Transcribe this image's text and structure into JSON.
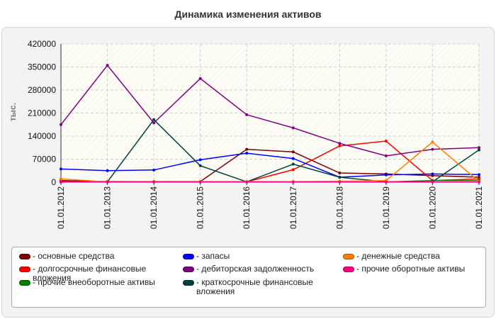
{
  "chart_data": {
    "type": "line",
    "title": "Динамика изменения активов",
    "ylabel": "тыс.",
    "xlabel": "",
    "ylim": [
      0,
      420000
    ],
    "yticks": [
      0,
      70000,
      140000,
      210000,
      280000,
      350000,
      420000
    ],
    "categories": [
      "01.01.2012",
      "01.01.2013",
      "01.01.2014",
      "01.01.2015",
      "01.01.2016",
      "01.01.2017",
      "01.01.2018",
      "01.01.2019",
      "01.01.2020",
      "01.01.2021"
    ],
    "grid": true,
    "legend_position": "bottom",
    "legend_prefix": "- ",
    "series": [
      {
        "name": "основные средства",
        "color": "#800000",
        "values": [
          5000,
          2000,
          2000,
          2000,
          100000,
          92000,
          28000,
          25000,
          20000,
          15000
        ]
      },
      {
        "name": "долгосрочные финансовые вложения",
        "color": "#ff0000",
        "values": [
          3000,
          1000,
          1000,
          1000,
          1000,
          38000,
          110000,
          125000,
          5000,
          10000
        ]
      },
      {
        "name": "прочие внеоборотные активы",
        "color": "#008000",
        "values": [
          500,
          500,
          500,
          500,
          500,
          500,
          500,
          500,
          5000,
          5000
        ]
      },
      {
        "name": "запасы",
        "color": "#0000ff",
        "values": [
          40000,
          35000,
          37000,
          68000,
          88000,
          72000,
          15000,
          22000,
          25000,
          23000
        ]
      },
      {
        "name": "дебиторская задолженность",
        "color": "#800080",
        "values": [
          175000,
          355000,
          180000,
          315000,
          205000,
          165000,
          118000,
          80000,
          100000,
          105000
        ]
      },
      {
        "name": "краткосрочные финансовые вложения",
        "color": "#004040",
        "values": [
          1000,
          1000,
          190000,
          50000,
          1000,
          55000,
          15000,
          1000,
          1000,
          98000
        ]
      },
      {
        "name": "денежные средства",
        "color": "#ff8000",
        "values": [
          10000,
          1000,
          2000,
          2000,
          2000,
          2000,
          3000,
          5000,
          122000,
          2000
        ]
      },
      {
        "name": "прочие оборотные активы",
        "color": "#ff0080",
        "values": [
          500,
          500,
          500,
          500,
          500,
          500,
          500,
          500,
          500,
          500
        ]
      }
    ]
  }
}
